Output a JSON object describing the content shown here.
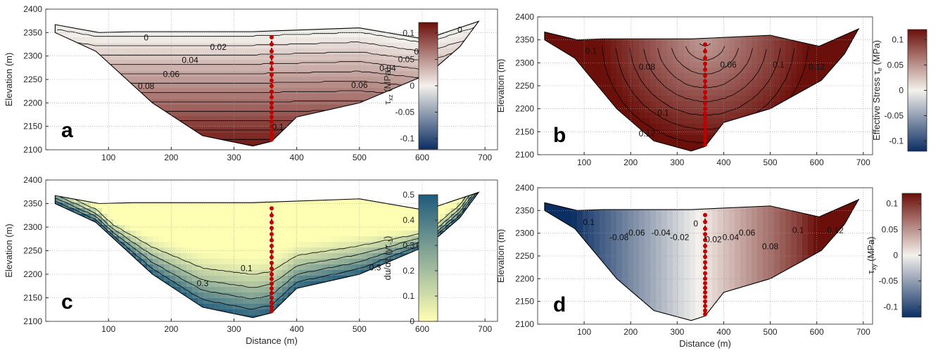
{
  "colors": {
    "profile_points": "#c00000",
    "div_low": "#0b2e63",
    "div_mid": "#f4f1ec",
    "div_high": "#6b0f0a",
    "seq_low": "#ffffb3",
    "seq_high": "#1f5a7c"
  },
  "panel_labels": [
    "a",
    "b",
    "c",
    "d"
  ],
  "chart_data": [
    {
      "type": "contour",
      "panel": "a",
      "xlabel": "",
      "ylabel": "Elevation (m)",
      "xlim": [
        0,
        720
      ],
      "ylim": [
        2100,
        2400
      ],
      "xticks": [
        "100",
        "200",
        "300",
        "400",
        "500",
        "600",
        "700"
      ],
      "yticks": [
        "2100",
        "2150",
        "2200",
        "2250",
        "2300",
        "2350",
        "2400"
      ],
      "grid": true,
      "colorbar": {
        "label": "τ_xz (MPa)",
        "label_parts": [
          "τ",
          "xz",
          " (MPa)"
        ],
        "range": [
          -0.12,
          0.12
        ],
        "ticks": [
          "0.1",
          "0.05",
          "0",
          "-0.05",
          "-0.1"
        ],
        "colormap": "diverging"
      },
      "contour_labels": [
        {
          "text": "0",
          "x": 160,
          "y": 2333
        },
        {
          "text": "0",
          "x": 660,
          "y": 2350
        },
        {
          "text": "0.02",
          "x": 275,
          "y": 2313
        },
        {
          "text": "0.02",
          "x": 600,
          "y": 2303
        },
        {
          "text": "0.04",
          "x": 230,
          "y": 2285
        },
        {
          "text": "0.04",
          "x": 545,
          "y": 2268
        },
        {
          "text": "0.06",
          "x": 200,
          "y": 2255
        },
        {
          "text": "0.06",
          "x": 500,
          "y": 2232
        },
        {
          "text": "0.08",
          "x": 160,
          "y": 2230
        },
        {
          "text": "0.1",
          "x": 370,
          "y": 2143
        }
      ]
    },
    {
      "type": "contour",
      "panel": "b",
      "xlabel": "",
      "ylabel": "Elevation (m)",
      "xlim": [
        0,
        720
      ],
      "ylim": [
        2100,
        2400
      ],
      "xticks": [
        "100",
        "200",
        "300",
        "400",
        "500",
        "600",
        "700"
      ],
      "yticks": [
        "2100",
        "2150",
        "2200",
        "2250",
        "2300",
        "2350",
        "2400"
      ],
      "grid": true,
      "colorbar": {
        "label": "Effective Stress τe (MPa)",
        "label_parts": [
          "Effective Stress τ",
          "e",
          " (MPa)"
        ],
        "range": [
          -0.12,
          0.12
        ],
        "ticks": [
          "0.1",
          "0.05",
          "0",
          "-0.05",
          "-0.1"
        ],
        "colormap": "diverging"
      },
      "contour_labels": [
        {
          "text": "0.1",
          "x": 115,
          "y": 2320
        },
        {
          "text": "0.08",
          "x": 235,
          "y": 2285
        },
        {
          "text": "0.06",
          "x": 410,
          "y": 2290
        },
        {
          "text": "0.1",
          "x": 518,
          "y": 2290
        },
        {
          "text": "0.12",
          "x": 600,
          "y": 2285
        },
        {
          "text": "0.1",
          "x": 270,
          "y": 2185
        },
        {
          "text": "0.12",
          "x": 235,
          "y": 2140
        }
      ]
    },
    {
      "type": "contour",
      "panel": "c",
      "xlabel": "Distance (m)",
      "ylabel": "Elevation (m)",
      "xlim": [
        0,
        720
      ],
      "ylim": [
        2100,
        2400
      ],
      "xticks": [
        "100",
        "200",
        "300",
        "400",
        "500",
        "600",
        "700"
      ],
      "yticks": [
        "2100",
        "2150",
        "2200",
        "2250",
        "2300",
        "2350",
        "2400"
      ],
      "grid": true,
      "colorbar": {
        "label": "du/dz (yr-1)",
        "label_parts": [
          "du/dz (yr",
          "-1",
          ")"
        ],
        "range": [
          0,
          0.5
        ],
        "ticks": [
          "0.5",
          "0.4",
          "0.3",
          "0.2",
          "0.1",
          "0"
        ],
        "colormap": "sequential"
      },
      "contour_labels": [
        {
          "text": "0.1",
          "x": 600,
          "y": 2255
        },
        {
          "text": "0.1",
          "x": 320,
          "y": 2207
        },
        {
          "text": "0.3",
          "x": 525,
          "y": 2208
        },
        {
          "text": "0.3",
          "x": 250,
          "y": 2175
        }
      ]
    },
    {
      "type": "contour",
      "panel": "d",
      "xlabel": "Distance (m)",
      "ylabel": "Elevation (m)",
      "xlim": [
        0,
        720
      ],
      "ylim": [
        2100,
        2400
      ],
      "xticks": [
        "100",
        "200",
        "300",
        "400",
        "500",
        "600",
        "700"
      ],
      "yticks": [
        "2100",
        "2150",
        "2200",
        "2250",
        "2300",
        "2350",
        "2400"
      ],
      "grid": true,
      "colorbar": {
        "label": "τ_xy (MPa)",
        "label_parts": [
          "τ",
          "xy",
          " (MPa)"
        ],
        "range": [
          -0.12,
          0.12
        ],
        "ticks": [
          "0.1",
          "0.05",
          "0",
          "-0.05",
          "-0.1"
        ],
        "colormap": "diverging"
      },
      "contour_labels": [
        {
          "text": "0.1",
          "x": 110,
          "y": 2318
        },
        {
          "text": "-0.08",
          "x": 175,
          "y": 2285
        },
        {
          "text": "-0.06",
          "x": 210,
          "y": 2295
        },
        {
          "text": "-0.04",
          "x": 265,
          "y": 2295
        },
        {
          "text": "-0.02",
          "x": 305,
          "y": 2285
        },
        {
          "text": "0",
          "x": 340,
          "y": 2315
        },
        {
          "text": "0.02",
          "x": 378,
          "y": 2280
        },
        {
          "text": "0.04",
          "x": 415,
          "y": 2285
        },
        {
          "text": "0.06",
          "x": 450,
          "y": 2295
        },
        {
          "text": "0.08",
          "x": 500,
          "y": 2265
        },
        {
          "text": "0.1",
          "x": 560,
          "y": 2300
        },
        {
          "text": "0.12",
          "x": 640,
          "y": 2300
        }
      ]
    }
  ]
}
